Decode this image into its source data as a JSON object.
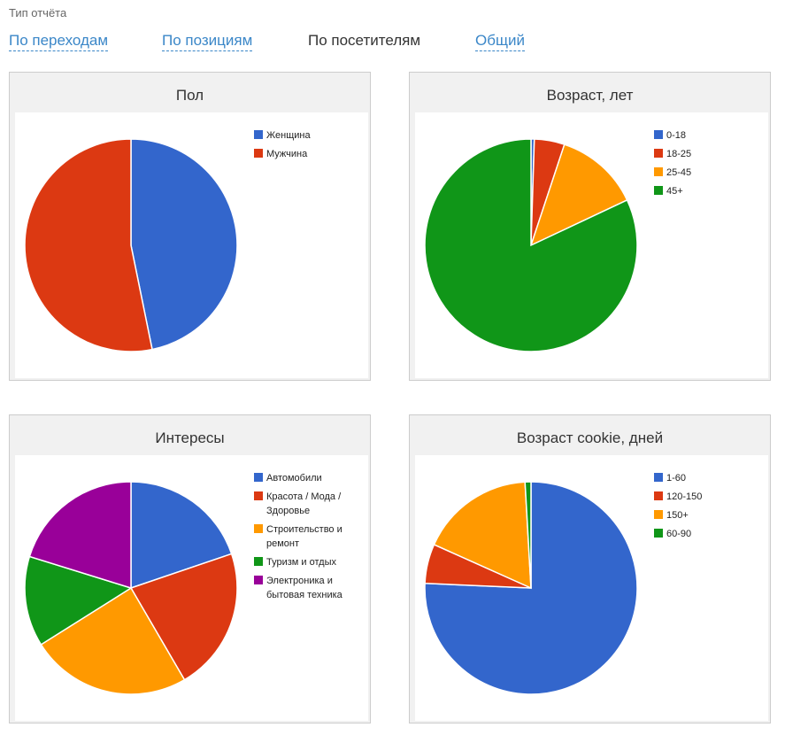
{
  "header": {
    "report_type_label": "Тип отчёта"
  },
  "tabs": [
    {
      "label": "По переходам",
      "active": false
    },
    {
      "label": "По позициям",
      "active": false
    },
    {
      "label": "По посетителям",
      "active": true
    },
    {
      "label": "Общий",
      "active": false
    }
  ],
  "chart_data": [
    {
      "type": "pie",
      "title": "Пол",
      "categories": [
        "Женщина",
        "Мужчина"
      ],
      "values": [
        46.8,
        53.2
      ],
      "colors": [
        "#3366cc",
        "#dc3912"
      ]
    },
    {
      "type": "pie",
      "title": "Возраст, лет",
      "categories": [
        "0-18",
        "18-25",
        "25-45",
        "45+"
      ],
      "values": [
        0.5,
        4.6,
        12.9,
        82.0
      ],
      "colors": [
        "#3366cc",
        "#dc3912",
        "#ff9900",
        "#109618"
      ]
    },
    {
      "type": "pie",
      "title": "Интересы",
      "categories": [
        "Автомобили",
        "Красота / Мода / Здоровье",
        "Строительство и ремонт",
        "Туризм и отдых",
        "Электроника и бытовая техника"
      ],
      "values": [
        18.6,
        20.5,
        23.0,
        12.9,
        19.0
      ],
      "colors": [
        "#3366cc",
        "#dc3912",
        "#ff9900",
        "#109618",
        "#990099"
      ]
    },
    {
      "type": "pie",
      "title": "Возраст cookie, дней",
      "categories": [
        "1-60",
        "120-150",
        "150+",
        "60-90"
      ],
      "values": [
        75.7,
        6.0,
        17.4,
        0.9
      ],
      "colors": [
        "#3366cc",
        "#dc3912",
        "#ff9900",
        "#109618"
      ]
    }
  ]
}
